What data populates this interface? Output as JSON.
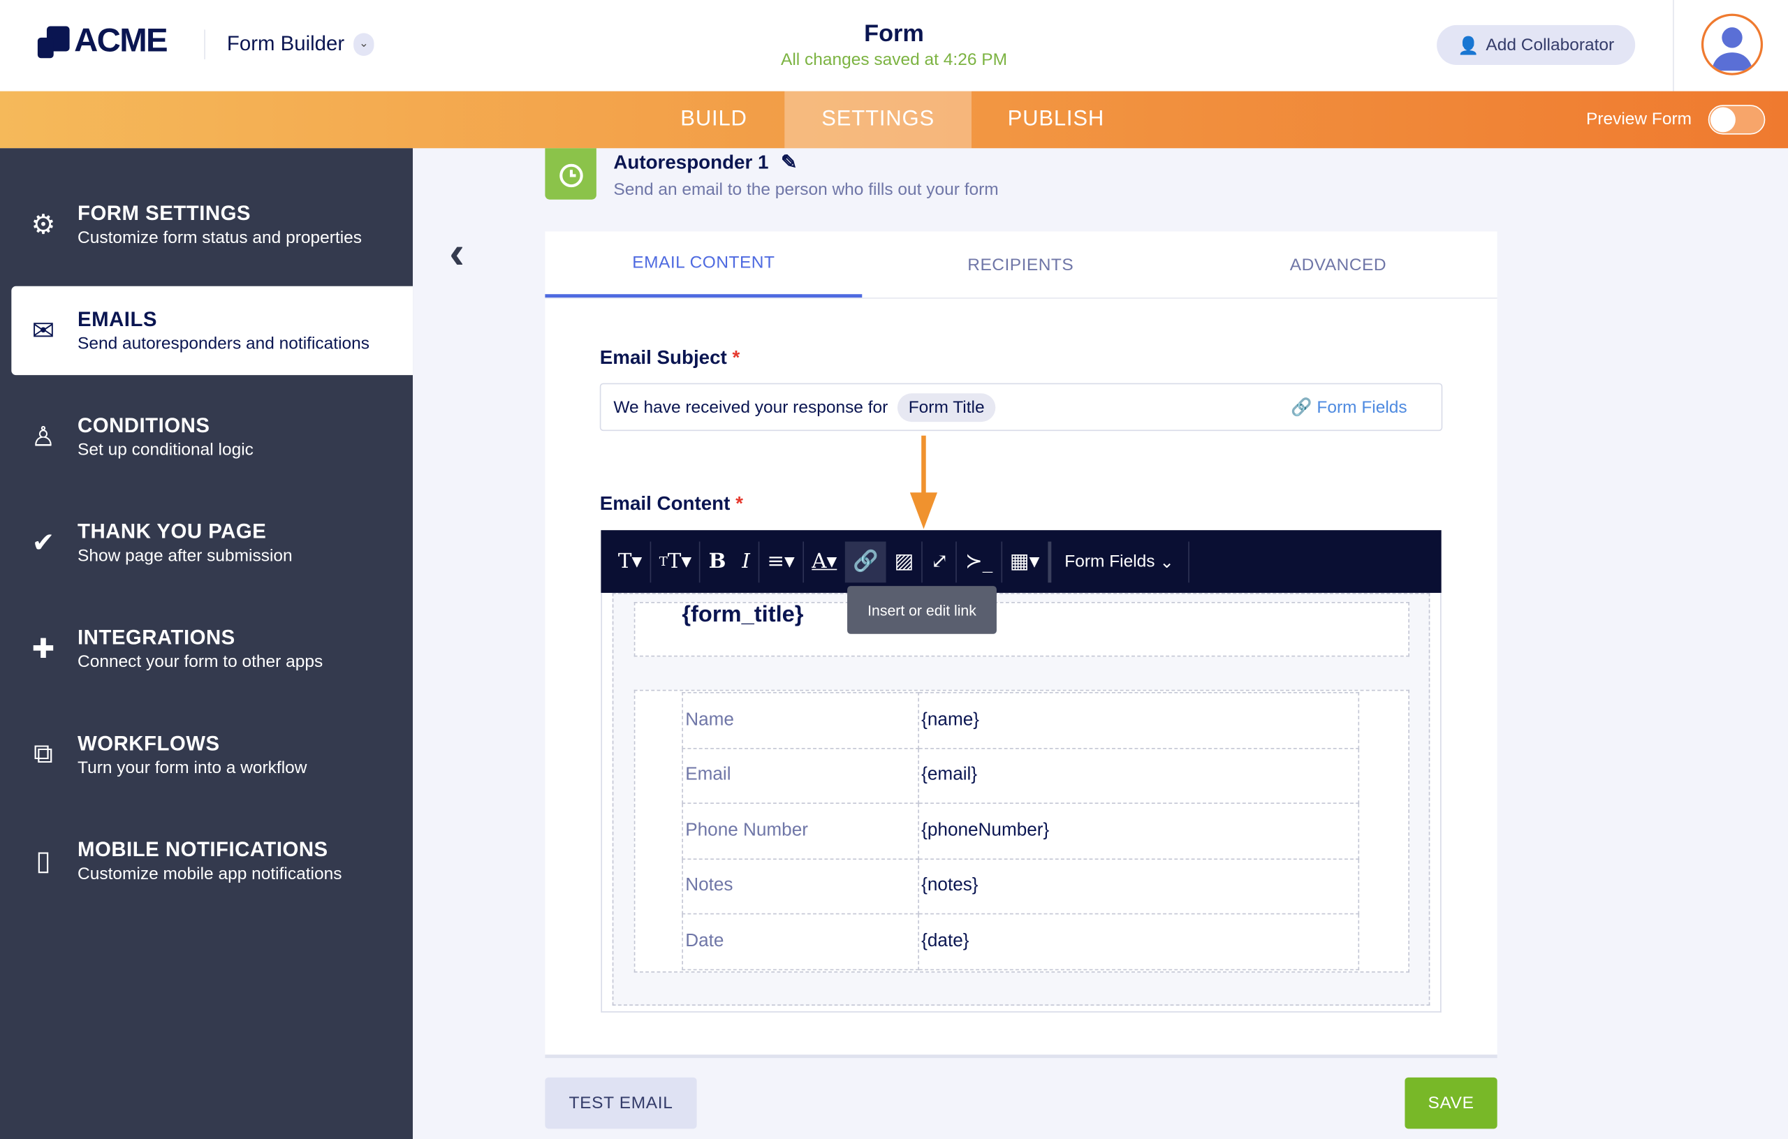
{
  "header": {
    "logo": "ACME",
    "app": "Form Builder",
    "title": "Form",
    "saved": "All changes saved at 4:26 PM",
    "collaborator": "Add Collaborator"
  },
  "nav": {
    "tabs": [
      "BUILD",
      "SETTINGS",
      "PUBLISH"
    ],
    "active": "SETTINGS",
    "preview": "Preview Form",
    "preview_on": false
  },
  "sidebar": {
    "items": [
      {
        "title": "FORM SETTINGS",
        "desc": "Customize form status and properties",
        "icon": "gear-icon"
      },
      {
        "title": "EMAILS",
        "desc": "Send autoresponders and notifications",
        "icon": "envelope-icon"
      },
      {
        "title": "CONDITIONS",
        "desc": "Set up conditional logic",
        "icon": "hierarchy-icon"
      },
      {
        "title": "THANK YOU PAGE",
        "desc": "Show page after submission",
        "icon": "check-circle-icon"
      },
      {
        "title": "INTEGRATIONS",
        "desc": "Connect your form to other apps",
        "icon": "puzzle-icon"
      },
      {
        "title": "WORKFLOWS",
        "desc": "Turn your form into a workflow",
        "icon": "workflow-icon"
      },
      {
        "title": "MOBILE NOTIFICATIONS",
        "desc": "Customize mobile app notifications",
        "icon": "mobile-icon"
      }
    ],
    "active": "EMAILS"
  },
  "email": {
    "name": "Autoresponder 1",
    "desc": "Send an email to the person who fills out your form",
    "tabs": [
      "EMAIL CONTENT",
      "RECIPIENTS",
      "ADVANCED"
    ],
    "subject_label": "Email Subject",
    "required": "*",
    "subject_text": "We have received your response for",
    "subject_chip": "Form Title",
    "form_fields": "Form Fields",
    "content_label": "Email Content",
    "toolbar_fields": "Form Fields",
    "tooltip": "Insert or edit link",
    "form_title": "{form_title}",
    "rows": [
      [
        "Name",
        "{name}"
      ],
      [
        "Email",
        "{email}"
      ],
      [
        "Phone Number",
        "{phoneNumber}"
      ],
      [
        "Notes",
        "{notes}"
      ],
      [
        "Date",
        "{date}"
      ]
    ]
  },
  "footer": {
    "test": "TEST EMAIL",
    "save": "SAVE"
  },
  "colors": {
    "accent": "#ef7a2f",
    "tab_active": "#4e6ae0",
    "save": "#78b828",
    "sidebar": "#343a4e"
  }
}
